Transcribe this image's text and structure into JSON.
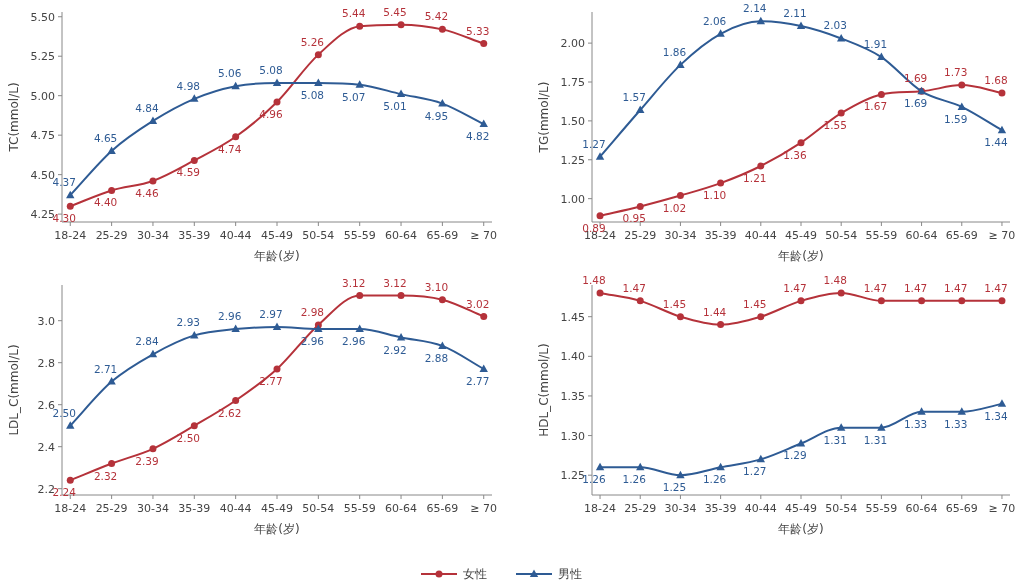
{
  "chart_data": [
    {
      "type": "line",
      "categories": [
        "18-24",
        "25-29",
        "30-34",
        "35-39",
        "40-44",
        "45-49",
        "50-54",
        "55-59",
        "60-64",
        "65-69",
        "≥ 70"
      ],
      "xlabel": "年龄(岁)",
      "ylabel": "TC(mmol/L)",
      "ylim": [
        4.2,
        5.53
      ],
      "yticks": [
        {
          "value": 4.25,
          "label": "4.25"
        },
        {
          "value": 4.5,
          "label": "4.50"
        },
        {
          "value": 4.75,
          "label": "4.75"
        },
        {
          "value": 5.0,
          "label": "5.00"
        },
        {
          "value": 5.25,
          "label": "5.25"
        },
        {
          "value": 5.5,
          "label": "5.50"
        }
      ],
      "legend": "bottom",
      "series": [
        {
          "name": "女性",
          "color": "#b5323a",
          "marker": "circle",
          "values": [
            4.3,
            4.4,
            4.46,
            4.59,
            4.74,
            4.96,
            5.26,
            5.44,
            5.45,
            5.42,
            5.33
          ],
          "value_labels": [
            "4.30",
            "4.40",
            "4.46",
            "4.59",
            "4.74",
            "4.96",
            "5.26",
            "5.44",
            "5.45",
            "5.42",
            "5.33"
          ]
        },
        {
          "name": "男性",
          "color": "#2e5b94",
          "marker": "triangle",
          "values": [
            4.37,
            4.65,
            4.84,
            4.98,
            5.06,
            5.08,
            5.08,
            5.07,
            5.01,
            4.95,
            4.82
          ],
          "value_labels": [
            "4.37",
            "4.65",
            "4.84",
            "4.98",
            "5.06",
            "5.08",
            "5.08",
            "5.07",
            "5.01",
            "4.95",
            "4.82"
          ]
        }
      ]
    },
    {
      "type": "line",
      "categories": [
        "18-24",
        "25-29",
        "30-34",
        "35-39",
        "40-44",
        "45-49",
        "50-54",
        "55-59",
        "60-64",
        "65-69",
        "≥ 70"
      ],
      "xlabel": "年龄(岁)",
      "ylabel": "TG(mmol/L)",
      "ylim": [
        0.85,
        2.2
      ],
      "yticks": [
        {
          "value": 1.0,
          "label": "1.00"
        },
        {
          "value": 1.25,
          "label": "1.25"
        },
        {
          "value": 1.5,
          "label": "1.50"
        },
        {
          "value": 1.75,
          "label": "1.75"
        },
        {
          "value": 2.0,
          "label": "2.00"
        }
      ],
      "series": [
        {
          "color": "#b5323a",
          "marker": "circle",
          "values": [
            0.89,
            0.95,
            1.02,
            1.1,
            1.21,
            1.36,
            1.55,
            1.67,
            1.69,
            1.73,
            1.68
          ],
          "value_labels": [
            "0.89",
            "0.95",
            "1.02",
            "1.10",
            "1.21",
            "1.36",
            "1.55",
            "1.67",
            "1.69",
            "1.73",
            "1.68"
          ]
        },
        {
          "color": "#2e5b94",
          "marker": "triangle",
          "values": [
            1.27,
            1.57,
            1.86,
            2.06,
            2.14,
            2.11,
            2.03,
            1.91,
            1.69,
            1.59,
            1.44
          ],
          "value_labels": [
            "1.27",
            "1.57",
            "1.86",
            "2.06",
            "2.14",
            "2.11",
            "2.03",
            "1.91",
            "1.69",
            "1.59",
            "1.44"
          ]
        }
      ]
    },
    {
      "type": "line",
      "categories": [
        "18-24",
        "25-29",
        "30-34",
        "35-39",
        "40-44",
        "45-49",
        "50-54",
        "55-59",
        "60-64",
        "65-69",
        "≥ 70"
      ],
      "xlabel": "年龄(岁)",
      "ylabel": "LDL_C(mmol/L)",
      "ylim": [
        2.17,
        3.17
      ],
      "yticks": [
        {
          "value": 2.2,
          "label": "2.2"
        },
        {
          "value": 2.4,
          "label": "2.4"
        },
        {
          "value": 2.6,
          "label": "2.6"
        },
        {
          "value": 2.8,
          "label": "2.8"
        },
        {
          "value": 3.0,
          "label": "3.0"
        }
      ],
      "series": [
        {
          "color": "#b5323a",
          "marker": "circle",
          "values": [
            2.24,
            2.32,
            2.39,
            2.5,
            2.62,
            2.77,
            2.98,
            3.12,
            3.12,
            3.1,
            3.02
          ],
          "value_labels": [
            "2.24",
            "2.32",
            "2.39",
            "2.50",
            "2.62",
            "2.77",
            "2.98",
            "3.12",
            "3.12",
            "3.10",
            "3.02"
          ]
        },
        {
          "color": "#2e5b94",
          "marker": "triangle",
          "values": [
            2.5,
            2.71,
            2.84,
            2.93,
            2.96,
            2.97,
            2.96,
            2.96,
            2.92,
            2.88,
            2.77
          ],
          "value_labels": [
            "2.50",
            "2.71",
            "2.84",
            "2.93",
            "2.96",
            "2.97",
            "2.96",
            "2.96",
            "2.92",
            "2.88",
            "2.77"
          ]
        }
      ]
    },
    {
      "type": "line",
      "categories": [
        "18-24",
        "25-29",
        "30-34",
        "35-39",
        "40-44",
        "45-49",
        "50-54",
        "55-59",
        "60-64",
        "65-69",
        "≥ 70"
      ],
      "xlabel": "年龄(岁)",
      "ylabel": "HDL_C(mmol/L)",
      "ylim": [
        1.225,
        1.49
      ],
      "yticks": [
        {
          "value": 1.25,
          "label": "1.25"
        },
        {
          "value": 1.3,
          "label": "1.30"
        },
        {
          "value": 1.35,
          "label": "1.35"
        },
        {
          "value": 1.4,
          "label": "1.40"
        },
        {
          "value": 1.45,
          "label": "1.45"
        }
      ],
      "series": [
        {
          "color": "#b5323a",
          "marker": "circle",
          "values": [
            1.48,
            1.47,
            1.45,
            1.44,
            1.45,
            1.47,
            1.48,
            1.47,
            1.47,
            1.47,
            1.47
          ],
          "value_labels": [
            "1.48",
            "1.47",
            "1.45",
            "1.44",
            "1.45",
            "1.47",
            "1.48",
            "1.47",
            "1.47",
            "1.47",
            "1.47"
          ]
        },
        {
          "color": "#2e5b94",
          "marker": "triangle",
          "values": [
            1.26,
            1.26,
            1.25,
            1.26,
            1.27,
            1.29,
            1.31,
            1.31,
            1.33,
            1.33,
            1.34
          ],
          "value_labels": [
            "1.26",
            "1.26",
            "1.25",
            "1.26",
            "1.27",
            "1.29",
            "1.31",
            "1.31",
            "1.33",
            "1.33",
            "1.34"
          ]
        }
      ]
    }
  ]
}
